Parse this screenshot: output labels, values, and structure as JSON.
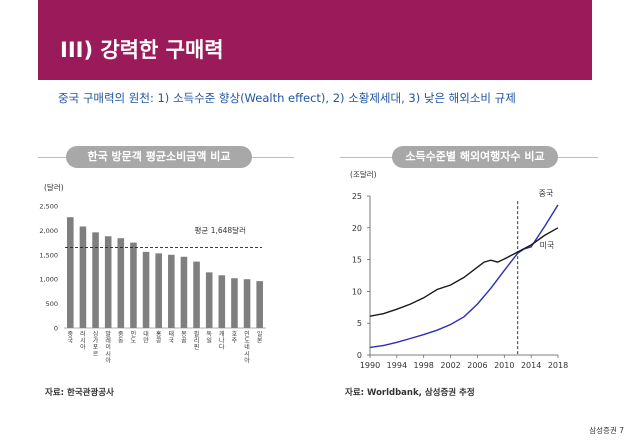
{
  "slide": {
    "title": "III) 강력한 구매력",
    "subtitle": "중국 구매력의 원천: 1) 소득수준 향상(Wealth effect), 2) 소황제세대, 3) 낮은 해외소비 규제",
    "page": "삼성증권 7",
    "accent_color": "#9b1a5a",
    "subtitle_color": "#1f55a5"
  },
  "left_chart": {
    "header": "한국 방문객 평균소비금액 비교",
    "source": "자료: 한국관광공사"
  },
  "right_chart": {
    "header": "소득수준별 해외여행자수 비교",
    "source": "자료:  Worldbank, 삼성증권 추정"
  },
  "chart_data": [
    {
      "type": "bar",
      "title": "한국 방문객 평균소비금액 비교",
      "ylabel": "(달러)",
      "ylim": [
        0,
        2500
      ],
      "yticks": [
        "0",
        "500",
        "1,000",
        "1,500",
        "2,000",
        "2,500"
      ],
      "ytick_values": [
        0,
        500,
        1000,
        1500,
        2000,
        2500
      ],
      "categories": [
        "중국",
        "러시아",
        "싱가포르",
        "말레이시아",
        "중동",
        "인도",
        "대만",
        "홍콩",
        "태국",
        "몽골",
        "필리핀",
        "독일",
        "캐나다",
        "호주",
        "인도네시아",
        "일본"
      ],
      "values": [
        2270,
        2080,
        1960,
        1880,
        1840,
        1750,
        1560,
        1530,
        1500,
        1460,
        1360,
        1140,
        1080,
        1020,
        1000,
        960
      ],
      "bar_color": "#7f7f7f",
      "reference_line": {
        "value": 1648,
        "label": "평균 1,648달러"
      }
    },
    {
      "type": "line",
      "title": "소득수준별 해외여행자수 비교",
      "ylabel": "(조달러)",
      "xlim": [
        1990,
        2018
      ],
      "ylim": [
        0,
        25
      ],
      "xticks": [
        1990,
        1994,
        1998,
        2002,
        2006,
        2010,
        2014,
        2018
      ],
      "yticks": [
        0,
        5,
        10,
        15,
        20,
        25
      ],
      "vertical_marker": 2012,
      "series": [
        {
          "name": "중국",
          "color": "#2a2fb5",
          "x": [
            1990,
            1992,
            1994,
            1996,
            1998,
            2000,
            2002,
            2004,
            2006,
            2008,
            2010,
            2012,
            2013,
            2014,
            2016,
            2018
          ],
          "y": [
            1.2,
            1.5,
            2.0,
            2.6,
            3.2,
            3.9,
            4.8,
            6.0,
            8.0,
            10.5,
            13.3,
            16.0,
            16.7,
            17.0,
            20.2,
            23.6
          ]
        },
        {
          "name": "미국",
          "color": "#1a1a1a",
          "x": [
            1990,
            1992,
            1994,
            1996,
            1998,
            2000,
            2002,
            2004,
            2006,
            2007,
            2008,
            2009,
            2010,
            2012,
            2014,
            2016,
            2018
          ],
          "y": [
            6.1,
            6.5,
            7.2,
            8.0,
            9.0,
            10.3,
            11.0,
            12.2,
            13.8,
            14.6,
            14.9,
            14.6,
            15.1,
            16.2,
            17.3,
            18.8,
            20.0
          ]
        }
      ]
    }
  ]
}
